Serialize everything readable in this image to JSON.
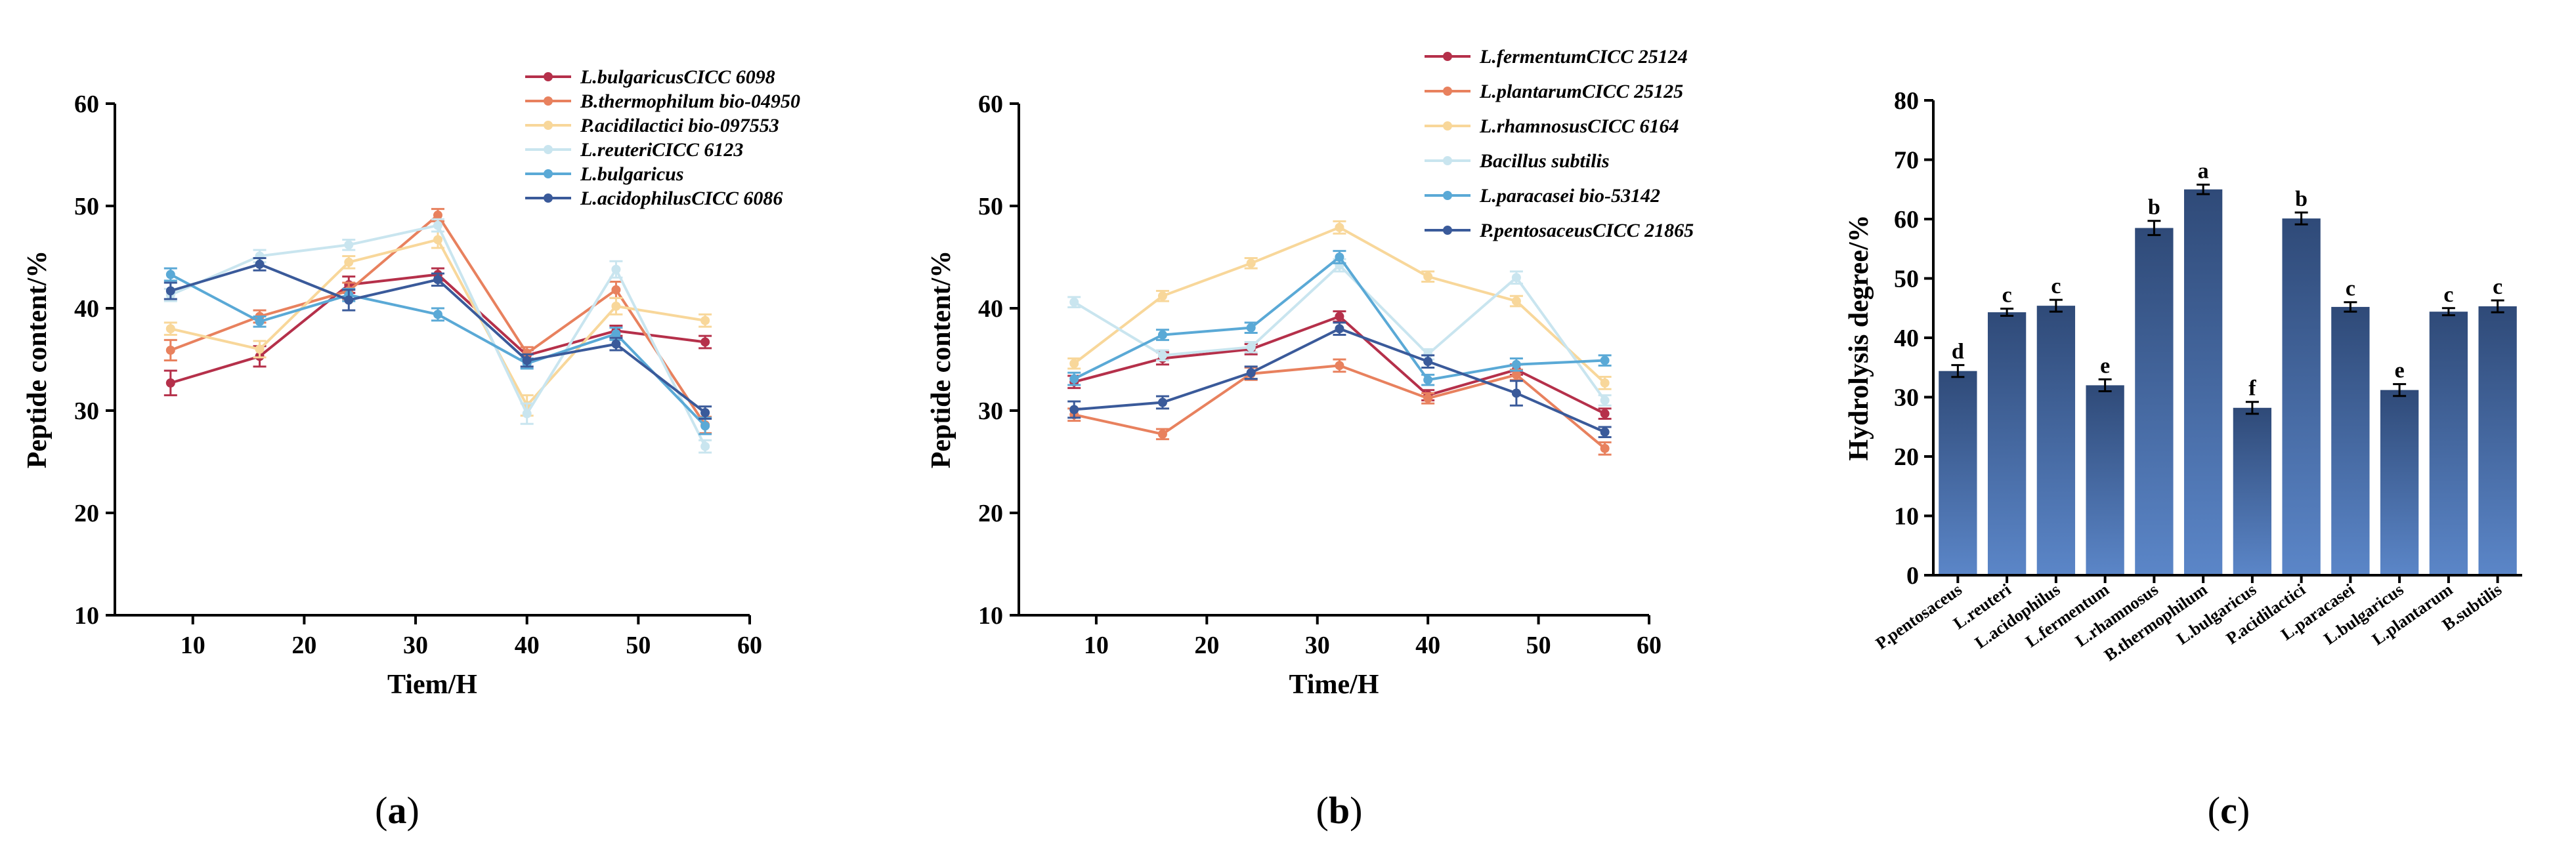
{
  "chart_data": [
    {
      "type": "line",
      "panel_label_open": "(",
      "panel_label_letter": "a",
      "panel_label_close": ")",
      "xlabel": "Tiem/H",
      "ylabel": "Peptide content/%",
      "xlim": [
        3,
        60
      ],
      "ylim": [
        10,
        60
      ],
      "xticks": [
        10,
        20,
        30,
        40,
        50,
        60
      ],
      "yticks": [
        10,
        20,
        30,
        40,
        50,
        60
      ],
      "x": [
        8,
        16,
        24,
        32,
        40,
        48,
        56
      ],
      "legend_position": "top-right",
      "series": [
        {
          "name": "L.bulgaricusCICC 6098",
          "color": "#b5304a",
          "values": [
            32.7,
            35.3,
            42.3,
            43.3,
            35.4,
            37.8,
            36.7
          ],
          "errors": [
            1.2,
            1.0,
            0.8,
            0.6,
            0.5,
            0.5,
            0.6
          ]
        },
        {
          "name": "B.thermophilum bio-04950",
          "color": "#e8815e",
          "values": [
            35.9,
            39.2,
            41.7,
            49.1,
            35.6,
            41.8,
            28.6
          ],
          "errors": [
            1.0,
            0.6,
            0.8,
            0.6,
            0.6,
            0.8,
            0.8
          ]
        },
        {
          "name": "P.acidilactici bio-097553",
          "color": "#f8d79a",
          "values": [
            38.0,
            36.0,
            44.5,
            46.7,
            30.5,
            40.2,
            38.8
          ],
          "errors": [
            0.6,
            0.8,
            0.6,
            0.8,
            1.0,
            0.8,
            0.6
          ]
        },
        {
          "name": "L.reuteriCICC 6123",
          "color": "#c9e5ef",
          "values": [
            41.3,
            45.1,
            46.2,
            48.1,
            29.7,
            43.8,
            26.5
          ],
          "errors": [
            0.6,
            0.6,
            0.5,
            0.6,
            1.0,
            0.8,
            0.6
          ]
        },
        {
          "name": "L.bulgaricus",
          "color": "#5aa9d6",
          "values": [
            43.3,
            38.7,
            41.3,
            39.4,
            34.6,
            37.5,
            28.5
          ],
          "errors": [
            0.6,
            0.5,
            0.6,
            0.6,
            0.5,
            0.6,
            0.8
          ]
        },
        {
          "name": "L.acidophilusCICC 6086",
          "color": "#3a5a9a",
          "values": [
            41.7,
            44.3,
            40.8,
            42.8,
            34.9,
            36.5,
            29.8
          ],
          "errors": [
            0.8,
            0.6,
            1.0,
            0.6,
            0.6,
            0.6,
            0.6
          ]
        }
      ]
    },
    {
      "type": "line",
      "panel_label_open": "(",
      "panel_label_letter": "b",
      "panel_label_close": ")",
      "xlabel": "Time/H",
      "ylabel": "Peptide content/%",
      "xlim": [
        3,
        60
      ],
      "ylim": [
        10,
        60
      ],
      "xticks": [
        10,
        20,
        30,
        40,
        50,
        60
      ],
      "yticks": [
        10,
        20,
        30,
        40,
        50,
        60
      ],
      "x": [
        8,
        16,
        24,
        32,
        40,
        48,
        56
      ],
      "legend_position": "top-right",
      "series": [
        {
          "name": "L.fermentumCICC 25124",
          "color": "#b5304a",
          "values": [
            32.8,
            35.1,
            36.0,
            39.2,
            31.5,
            34.0,
            29.7
          ],
          "errors": [
            0.6,
            0.6,
            0.5,
            0.5,
            0.5,
            0.5,
            0.5
          ]
        },
        {
          "name": "L.plantarumCICC 25125",
          "color": "#e8815e",
          "values": [
            29.6,
            27.7,
            33.6,
            34.4,
            31.2,
            33.5,
            26.3
          ],
          "errors": [
            0.6,
            0.5,
            0.6,
            0.6,
            0.5,
            0.5,
            0.6
          ]
        },
        {
          "name": "L.rhamnosusCICC 6164",
          "color": "#f8d79a",
          "values": [
            34.6,
            41.2,
            44.4,
            47.9,
            43.1,
            40.7,
            32.7
          ],
          "errors": [
            0.5,
            0.5,
            0.5,
            0.6,
            0.5,
            0.5,
            0.6
          ]
        },
        {
          "name": "Bacillus subtilis",
          "color": "#c9e5ef",
          "values": [
            40.6,
            35.4,
            36.2,
            44.2,
            35.5,
            43.0,
            31.0
          ],
          "errors": [
            0.5,
            0.5,
            0.5,
            0.6,
            0.5,
            0.6,
            0.5
          ]
        },
        {
          "name": "L.paracasei bio-53142",
          "color": "#5aa9d6",
          "values": [
            33.1,
            37.4,
            38.1,
            45.0,
            33.0,
            34.5,
            34.9
          ],
          "errors": [
            0.6,
            0.5,
            0.5,
            0.6,
            0.5,
            0.6,
            0.5
          ]
        },
        {
          "name": "P.pentosaceusCICC 21865",
          "color": "#3a5a9a",
          "values": [
            30.1,
            30.8,
            33.7,
            38.0,
            34.8,
            31.7,
            27.9
          ],
          "errors": [
            0.8,
            0.6,
            0.6,
            0.6,
            0.6,
            1.2,
            0.5
          ]
        }
      ]
    },
    {
      "type": "bar",
      "panel_label_open": "(",
      "panel_label_letter": "c",
      "panel_label_close": ")",
      "xlabel": "",
      "ylabel": "Hydrolysis degree/%",
      "ylim": [
        0,
        80
      ],
      "yticks": [
        0,
        10,
        20,
        30,
        40,
        50,
        60,
        70,
        80
      ],
      "categories": [
        "P.pentosaceus",
        "L.reuteri",
        "L.acidophilus",
        "L.fermentum",
        "L.rhamnosus",
        "B.thermophilum",
        "L.bulgaricus",
        "P.acidilactici",
        "L.paracasei",
        "L.bulgaricus",
        "L.plantarum",
        "B.subtilis"
      ],
      "values": [
        34.4,
        44.3,
        45.4,
        32.0,
        58.5,
        65.0,
        28.2,
        60.1,
        45.2,
        31.2,
        44.4,
        45.3
      ],
      "errors": [
        1.0,
        0.6,
        1.0,
        1.0,
        1.2,
        0.8,
        1.0,
        1.0,
        0.8,
        1.0,
        0.6,
        1.0
      ],
      "significance_letters": [
        "d",
        "c",
        "c",
        "e",
        "b",
        "a",
        "f",
        "b",
        "c",
        "e",
        "c",
        "c"
      ],
      "bar_color_top": "#2f4a78",
      "bar_color_bottom": "#5b86c8"
    }
  ]
}
